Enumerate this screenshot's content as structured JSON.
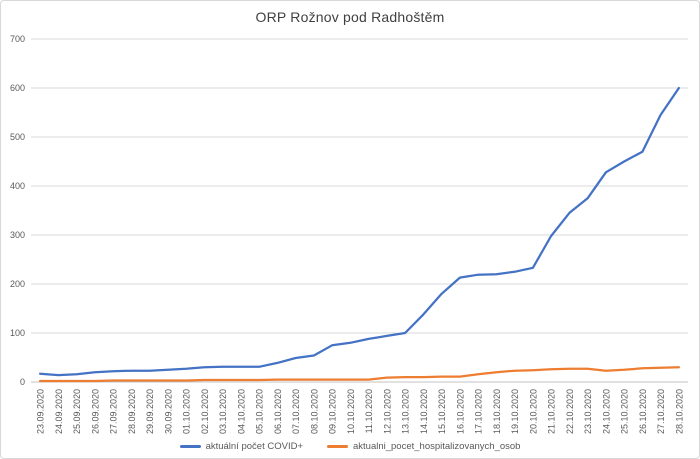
{
  "title": "ORP Rožnov pod Radhoštěm",
  "legend": {
    "items": [
      {
        "label": "aktuální počet COVID+",
        "color": "#4472C4"
      },
      {
        "label": "aktualni_pocet_hospitalizovanych_osob",
        "color": "#ED7D31"
      }
    ]
  },
  "chart_data": {
    "type": "line",
    "title": "ORP Rožnov pod Radhoštěm",
    "xlabel": "",
    "ylabel": "",
    "ylim": [
      0,
      700
    ],
    "ytick_interval": 100,
    "grid": true,
    "legend_position": "bottom",
    "categories": [
      "23.09.2020",
      "24.09.2020",
      "25.09.2020",
      "26.09.2020",
      "27.09.2020",
      "28.09.2020",
      "29.09.2020",
      "30.09.2020",
      "01.10.2020",
      "02.10.2020",
      "03.10.2020",
      "04.10.2020",
      "05.10.2020",
      "06.10.2020",
      "07.10.2020",
      "08.10.2020",
      "09.10.2020",
      "10.10.2020",
      "11.10.2020",
      "12.10.2020",
      "13.10.2020",
      "14.10.2020",
      "15.10.2020",
      "16.10.2020",
      "17.10.2020",
      "18.10.2020",
      "19.10.2020",
      "20.10.2020",
      "21.10.2020",
      "22.10.2020",
      "23.10.2020",
      "24.10.2020",
      "25.10.2020",
      "26.10.2020",
      "27.10.2020",
      "28.10.2020"
    ],
    "series": [
      {
        "name": "aktuální počet COVID+",
        "color": "#4472C4",
        "values": [
          17,
          14,
          16,
          20,
          22,
          23,
          23,
          25,
          27,
          30,
          31,
          31,
          31,
          39,
          49,
          54,
          75,
          80,
          88,
          94,
          100,
          138,
          180,
          213,
          219,
          220,
          225,
          233,
          298,
          345,
          375,
          428,
          450,
          470,
          545,
          600
        ]
      },
      {
        "name": "aktualni_pocet_hospitalizovanych_osob",
        "color": "#ED7D31",
        "values": [
          2,
          2,
          2,
          2,
          3,
          3,
          3,
          3,
          3,
          4,
          4,
          4,
          4,
          5,
          5,
          5,
          5,
          5,
          5,
          9,
          10,
          10,
          11,
          11,
          16,
          20,
          23,
          24,
          26,
          27,
          27,
          23,
          25,
          28,
          29,
          30
        ]
      }
    ]
  }
}
